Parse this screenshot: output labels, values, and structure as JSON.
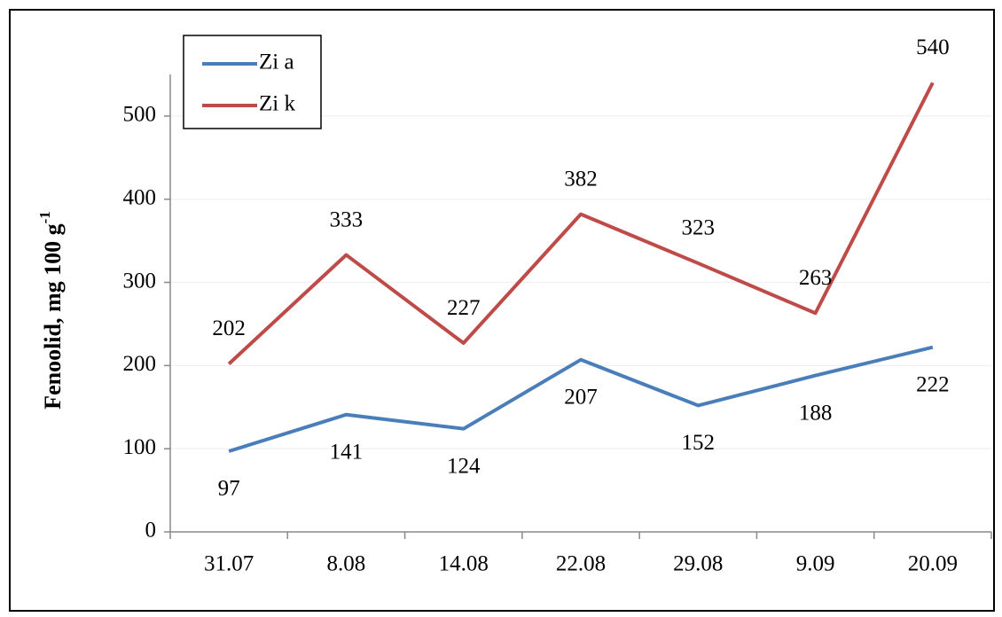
{
  "chart_data": {
    "type": "line",
    "y_label": "Fenoolid, mg 100 g",
    "y_label_sup": "-1",
    "categories": [
      "31.07",
      "8.08",
      "14.08",
      "22.08",
      "29.08",
      "9.09",
      "20.09"
    ],
    "series": [
      {
        "name": "Zi a",
        "color": "#4a7ebb",
        "values": [
          97,
          141,
          124,
          207,
          152,
          188,
          222
        ]
      },
      {
        "name": "Zi k",
        "color": "#be4b48",
        "values": [
          202,
          333,
          227,
          382,
          323,
          263,
          540
        ]
      }
    ],
    "ylim": [
      0,
      550
    ],
    "yticks": [
      0,
      100,
      200,
      300,
      400,
      500
    ],
    "grid": true,
    "legend": "top-left"
  }
}
